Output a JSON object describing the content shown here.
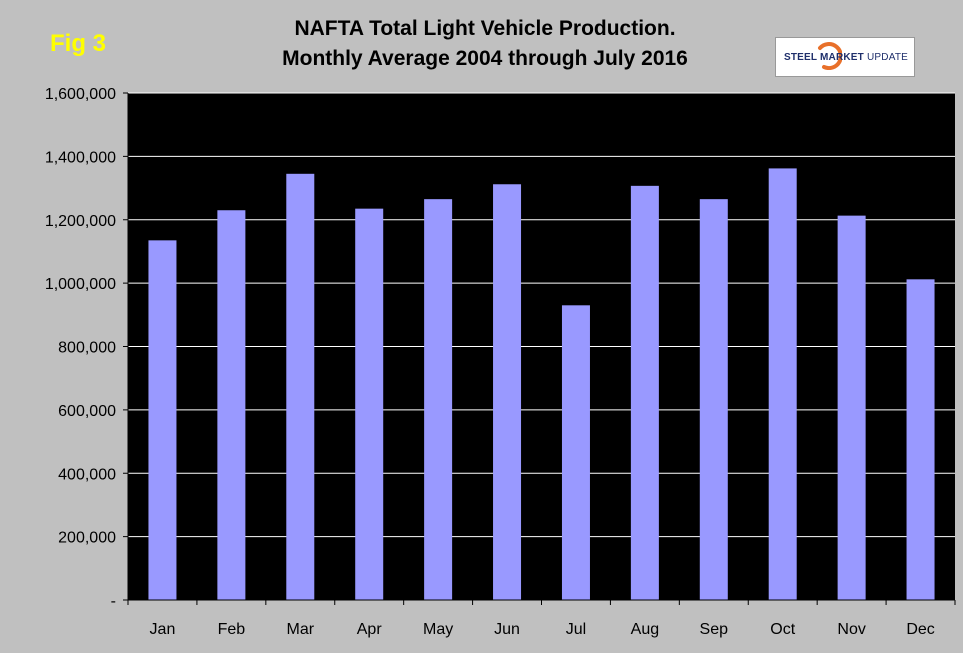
{
  "figure_label": "Fig 3",
  "title_line1": "NAFTA Total Light Vehicle Production.",
  "title_line2": "Monthly Average 2004 through July 2016",
  "logo": {
    "word1": "STEEL",
    "word2": "MARKET",
    "word3": "UPDATE",
    "accent_color": "#e8702a",
    "text_color": "#1f2f6b"
  },
  "chart_data": {
    "type": "bar",
    "categories": [
      "Jan",
      "Feb",
      "Mar",
      "Apr",
      "May",
      "Jun",
      "Jul",
      "Aug",
      "Sep",
      "Oct",
      "Nov",
      "Dec"
    ],
    "values": [
      1135000,
      1230000,
      1345000,
      1235000,
      1265000,
      1312000,
      930000,
      1307000,
      1265000,
      1362000,
      1213000,
      1012000
    ],
    "title": "NAFTA Total Light Vehicle Production. Monthly Average 2004 through July 2016",
    "xlabel": "",
    "ylabel": "",
    "ylim": [
      0,
      1600000
    ],
    "yticks": [
      0,
      200000,
      400000,
      600000,
      800000,
      1000000,
      1200000,
      1400000,
      1600000
    ],
    "ytick_labels": [
      "-",
      "200,000",
      "400,000",
      "600,000",
      "800,000",
      "1,000,000",
      "1,200,000",
      "1,400,000",
      "1,600,000"
    ],
    "grid": true,
    "legend": "none",
    "bar_color": "#9999ff",
    "plot_background": "#000000",
    "page_background": "#c0c0c0",
    "grid_color": "#ffffff"
  }
}
